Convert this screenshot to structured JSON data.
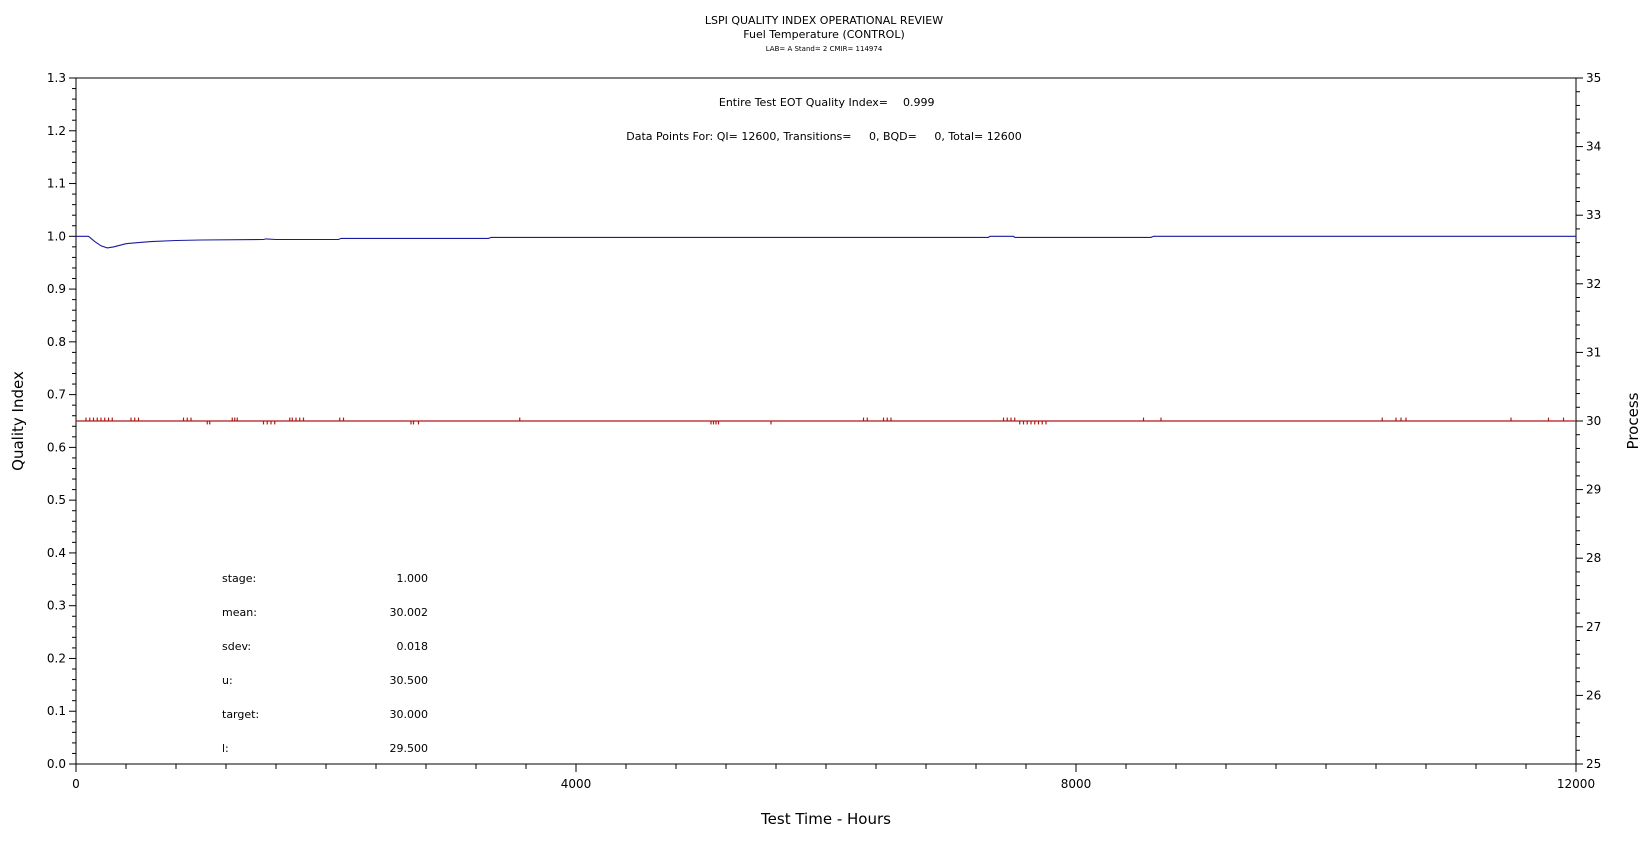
{
  "chart_data": {
    "type": "line",
    "title": "LSPI QUALITY INDEX OPERATIONAL REVIEW",
    "subtitle": "Fuel Temperature (CONTROL)",
    "subtitle2": "LAB= A Stand= 2 CMIR= 114974",
    "xlabel": "Test Time - Hours",
    "ylabel_left": "Quality Index",
    "ylabel_right": "Process",
    "xlim": [
      0,
      12000
    ],
    "ylim_left": [
      0,
      1.3
    ],
    "ylim_right": [
      25,
      35
    ],
    "x_ticks": [
      "0",
      "4000",
      "8000",
      "12000"
    ],
    "x_tick_values": [
      0,
      4000,
      8000,
      12000
    ],
    "y_left_ticks": [
      "0.0",
      "0.1",
      "0.2",
      "0.3",
      "0.4",
      "0.5",
      "0.6",
      "0.7",
      "0.8",
      "0.9",
      "1.0",
      "1.1",
      "1.2",
      "1.3"
    ],
    "y_right_ticks": [
      "25",
      "26",
      "27",
      "28",
      "29",
      "30",
      "31",
      "32",
      "33",
      "34",
      "35"
    ],
    "annotations": {
      "quality_index_label": "Entire Test EOT Quality Index=",
      "quality_index_value": "0.999",
      "datapoints": "Data Points For: QI= 12600, Transitions=     0, BQD=     0, Total= 12600"
    },
    "stats": [
      {
        "label": "stage:",
        "value": "1.000"
      },
      {
        "label": "mean:",
        "value": "30.002"
      },
      {
        "label": "sdev:",
        "value": "0.018"
      },
      {
        "label": "u:",
        "value": "30.500"
      },
      {
        "label": "target:",
        "value": "30.000"
      },
      {
        "label": "l:",
        "value": "29.500"
      }
    ],
    "series": [
      {
        "axis": "left",
        "color": "#1a1aa0",
        "x": [
          0,
          100,
          150,
          200,
          250,
          300,
          350,
          400,
          500,
          600,
          800,
          1000,
          1500,
          1520,
          1600,
          2100,
          2120,
          2200,
          3300,
          3320,
          7300,
          7310,
          7500,
          7510,
          8600,
          8620,
          12000
        ],
        "y": [
          1.0,
          1.0,
          0.99,
          0.982,
          0.978,
          0.98,
          0.983,
          0.986,
          0.988,
          0.99,
          0.992,
          0.993,
          0.994,
          0.995,
          0.994,
          0.994,
          0.996,
          0.996,
          0.996,
          0.998,
          0.998,
          1.0,
          1.0,
          0.998,
          0.998,
          1.0,
          1.0
        ]
      },
      {
        "axis": "right",
        "color": "#b01818",
        "baseline": 30.0,
        "x": [
          80,
          110,
          140,
          170,
          200,
          230,
          260,
          290,
          440,
          470,
          500,
          860,
          890,
          920,
          1050,
          1070,
          1250,
          1270,
          1290,
          1500,
          1530,
          1560,
          1590,
          1710,
          1730,
          1760,
          1790,
          1820,
          2110,
          2140,
          2680,
          2700,
          2740,
          3550,
          5080,
          5100,
          5120,
          5140,
          5560,
          6300,
          6330,
          6460,
          6490,
          6520,
          7420,
          7450,
          7480,
          7510,
          7550,
          7580,
          7610,
          7640,
          7670,
          7700,
          7730,
          7760,
          8540,
          8680,
          10450,
          10560,
          10600,
          10640,
          11480,
          11780,
          11900
        ],
        "y": [
          30.05,
          30.05,
          30.05,
          30.05,
          30.05,
          30.05,
          30.05,
          30.05,
          30.05,
          30.05,
          30.05,
          30.05,
          30.05,
          30.05,
          29.95,
          29.95,
          30.05,
          30.05,
          30.05,
          29.95,
          29.95,
          29.95,
          29.95,
          30.05,
          30.05,
          30.05,
          30.05,
          30.05,
          30.05,
          30.05,
          29.95,
          29.95,
          29.95,
          30.05,
          29.95,
          29.95,
          29.95,
          29.95,
          29.95,
          30.05,
          30.05,
          30.05,
          30.05,
          30.05,
          30.05,
          30.05,
          30.05,
          30.05,
          29.95,
          29.95,
          29.95,
          29.95,
          29.95,
          29.95,
          29.95,
          29.95,
          30.05,
          30.05,
          30.05,
          30.05,
          30.05,
          30.05,
          30.05,
          30.05,
          30.05
        ]
      }
    ]
  }
}
